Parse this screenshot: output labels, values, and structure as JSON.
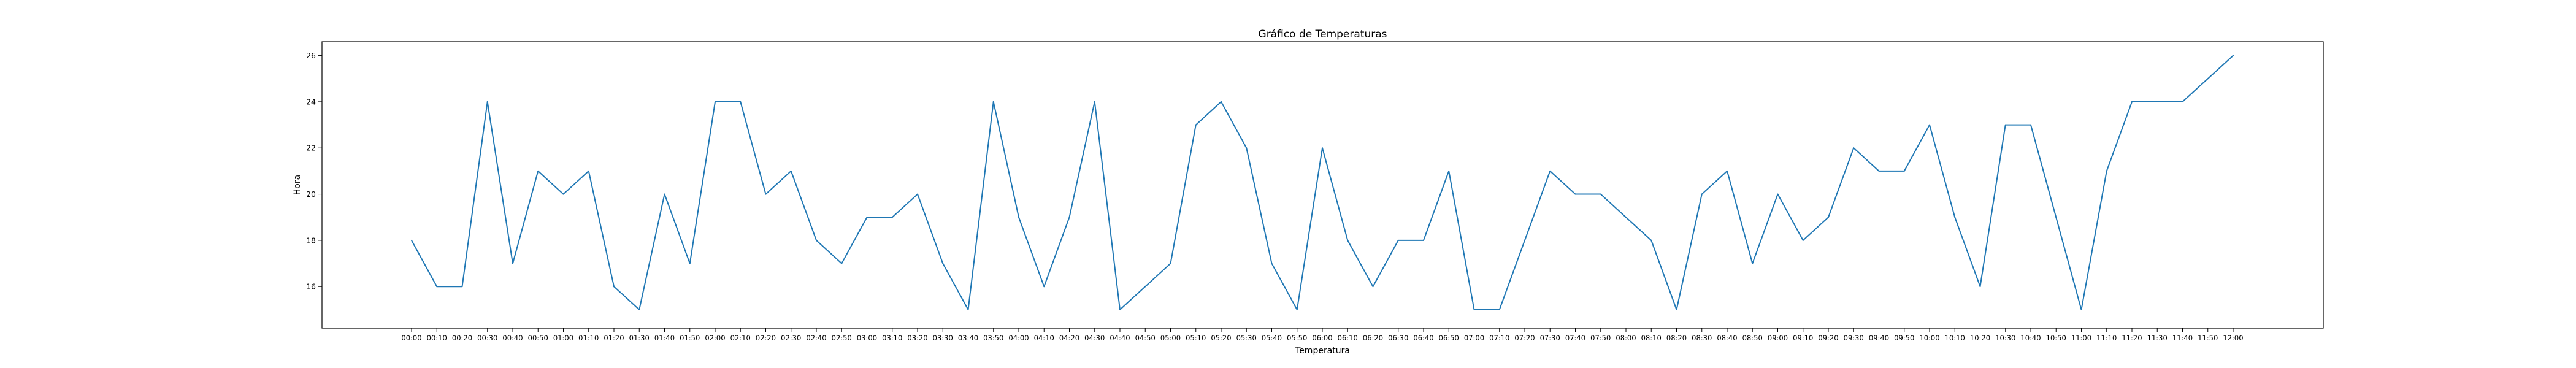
{
  "chart_data": {
    "type": "line",
    "title": "Gráfico de Temperaturas",
    "xlabel": "Temperatura",
    "ylabel": "Hora",
    "grid": false,
    "legend": "none",
    "ylim": [
      14.2,
      26.6
    ],
    "yticks": [
      16,
      18,
      20,
      22,
      24,
      26
    ],
    "line_color": "#1f77b4",
    "x": [
      "00:00",
      "00:10",
      "00:20",
      "00:30",
      "00:40",
      "00:50",
      "01:00",
      "01:10",
      "01:20",
      "01:30",
      "01:40",
      "01:50",
      "02:00",
      "02:10",
      "02:20",
      "02:30",
      "02:40",
      "02:50",
      "03:00",
      "03:10",
      "03:20",
      "03:30",
      "03:40",
      "03:50",
      "04:00",
      "04:10",
      "04:20",
      "04:30",
      "04:40",
      "04:50",
      "05:00",
      "05:10",
      "05:20",
      "05:30",
      "05:40",
      "05:50",
      "06:00",
      "06:10",
      "06:20",
      "06:30",
      "06:40",
      "06:50",
      "07:00",
      "07:10",
      "07:20",
      "07:30",
      "07:40",
      "07:50",
      "08:00",
      "08:10",
      "08:20",
      "08:30",
      "08:40",
      "08:50",
      "09:00",
      "09:10",
      "09:20",
      "09:30",
      "09:40",
      "09:50",
      "10:00",
      "10:10",
      "10:20",
      "10:30",
      "10:40",
      "10:50",
      "11:00",
      "11:10",
      "11:20",
      "11:30",
      "11:40",
      "11:50",
      "12:00"
    ],
    "series": [
      {
        "values": [
          18,
          16,
          16,
          24,
          17,
          21,
          20,
          21,
          16,
          15,
          20,
          17,
          24,
          24,
          20,
          21,
          18,
          17,
          19,
          19,
          20,
          17,
          15,
          24,
          19,
          16,
          19,
          24,
          15,
          16,
          17,
          23,
          24,
          22,
          17,
          15,
          22,
          18,
          16,
          18,
          18,
          21,
          15,
          15,
          18,
          21,
          20,
          20,
          19,
          18,
          15,
          20,
          21,
          17,
          20,
          18,
          19,
          22,
          21,
          21,
          23,
          19,
          16,
          23,
          23,
          19,
          15,
          21,
          24,
          24,
          24,
          25,
          26
        ]
      }
    ]
  }
}
